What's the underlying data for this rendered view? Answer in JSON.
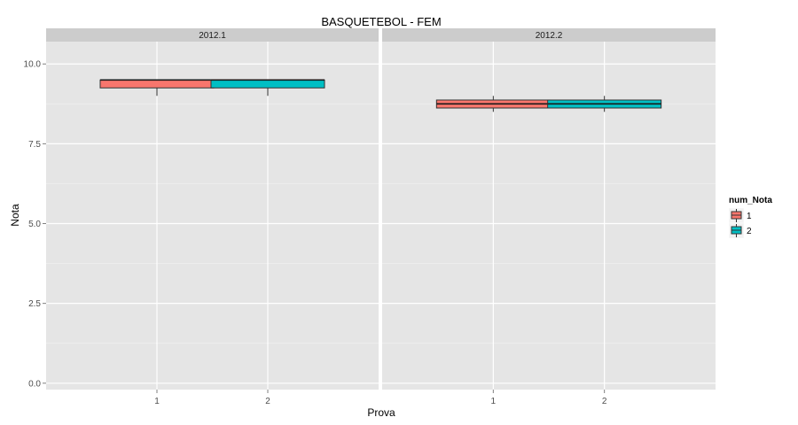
{
  "chart_data": {
    "type": "boxplot",
    "title": "BASQUETEBOL - FEM",
    "xlabel": "Prova",
    "ylabel": "Nota",
    "ylim": [
      -0.2,
      10.7
    ],
    "yticks": [
      0.0,
      2.5,
      5.0,
      7.5,
      10.0
    ],
    "ytick_labels": [
      "0.0",
      "2.5",
      "5.0",
      "7.5",
      "10.0"
    ],
    "categories": [
      "1",
      "2"
    ],
    "grid": true,
    "legend": {
      "title": "num_Nota",
      "position": "right",
      "items": [
        {
          "label": "1",
          "color": "#F8766D"
        },
        {
          "label": "2",
          "color": "#00BFC4"
        }
      ]
    },
    "facets": [
      {
        "label": "2012.1",
        "boxes": [
          {
            "category": "1",
            "group": "1",
            "min": 9.0,
            "q1": 9.25,
            "median": 9.5,
            "q3": 9.5,
            "max": 9.5
          },
          {
            "category": "2",
            "group": "2",
            "min": 9.0,
            "q1": 9.25,
            "median": 9.5,
            "q3": 9.5,
            "max": 9.5
          }
        ]
      },
      {
        "label": "2012.2",
        "boxes": [
          {
            "category": "1",
            "group": "1",
            "min": 8.5,
            "q1": 8.62,
            "median": 8.75,
            "q3": 8.87,
            "max": 9.0
          },
          {
            "category": "2",
            "group": "2",
            "min": 8.5,
            "q1": 8.62,
            "median": 8.75,
            "q3": 8.87,
            "max": 9.0
          }
        ]
      }
    ]
  }
}
